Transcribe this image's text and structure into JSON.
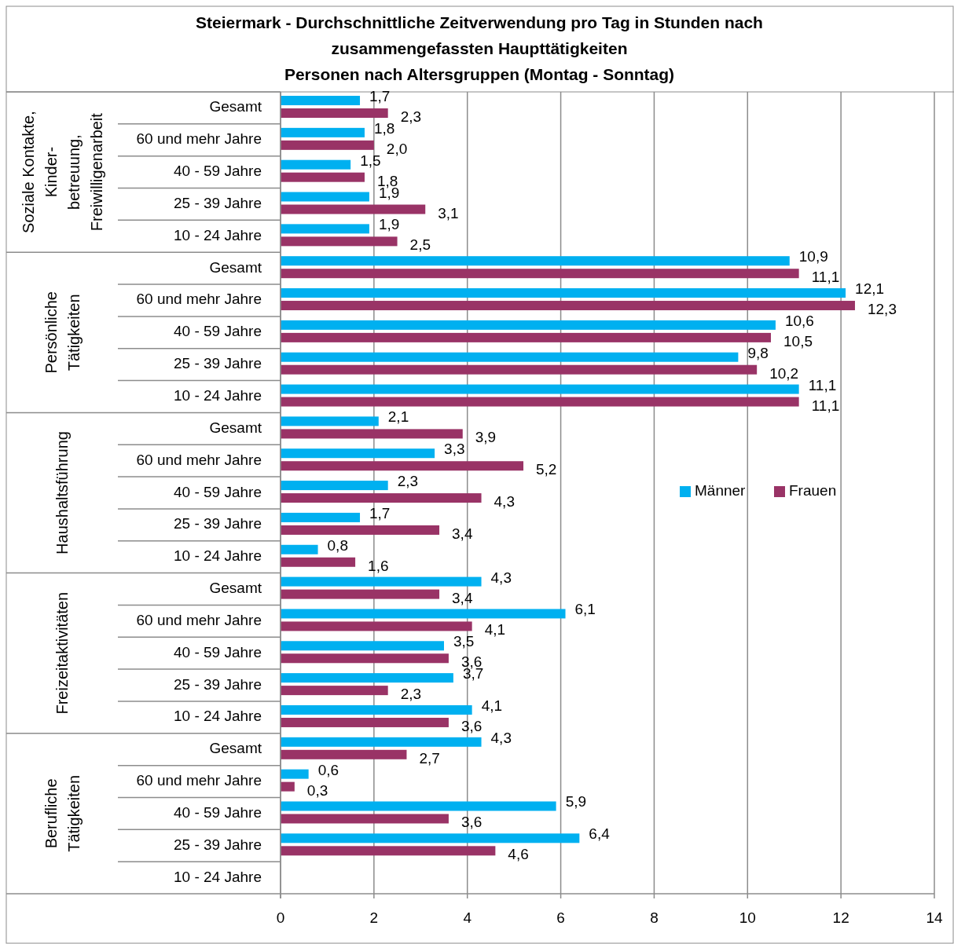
{
  "chart_data": {
    "type": "bar",
    "orientation": "horizontal",
    "title": "Steiermark - Durchschnittliche Zeitverwendung pro Tag in Stunden nach\nzusammengefassten Haupttätigkeiten\nPersonen nach Altersgruppen (Montag - Sonntag)",
    "categories": [
      "Gesamt",
      "60 und mehr Jahre",
      "40 - 59 Jahre",
      "25 - 39 Jahre",
      "10 - 24 Jahre",
      "Gesamt",
      "60 und mehr Jahre",
      "40 - 59 Jahre",
      "25 - 39 Jahre",
      "10 - 24 Jahre",
      "Gesamt",
      "60 und mehr Jahre",
      "40 - 59 Jahre",
      "25 - 39 Jahre",
      "10 - 24 Jahre",
      "Gesamt",
      "60 und mehr Jahre",
      "40 - 59 Jahre",
      "25 - 39 Jahre",
      "10 - 24 Jahre",
      "Gesamt",
      "60 und mehr Jahre",
      "40 - 59 Jahre",
      "25 - 39 Jahre",
      "10 - 24 Jahre"
    ],
    "series": [
      {
        "name": "Männer",
        "color": "#00b0f0",
        "values": [
          1.7,
          1.8,
          1.5,
          1.9,
          1.9,
          10.9,
          12.1,
          10.6,
          9.8,
          11.1,
          2.1,
          3.3,
          2.3,
          1.7,
          0.8,
          4.3,
          6.1,
          3.5,
          3.7,
          4.1,
          4.3,
          0.6,
          5.9,
          6.4,
          null
        ],
        "value_labels": [
          "1,7",
          "1,8",
          "1,5",
          "1,9",
          "1,9",
          "10,9",
          "12,1",
          "10,6",
          "9,8",
          "11,1",
          "2,1",
          "3,3",
          "2,3",
          "1,7",
          "0,8",
          "4,3",
          "6,1",
          "3,5",
          "3,7",
          "4,1",
          "4,3",
          "0,6",
          "5,9",
          "6,4",
          null
        ]
      },
      {
        "name": "Frauen",
        "color": "#993366",
        "values": [
          2.3,
          2.0,
          1.8,
          3.1,
          2.5,
          11.1,
          12.3,
          10.5,
          10.2,
          11.1,
          3.9,
          5.2,
          4.3,
          3.4,
          1.6,
          3.4,
          4.1,
          3.6,
          2.3,
          3.6,
          2.7,
          0.3,
          3.6,
          4.6,
          null
        ],
        "value_labels": [
          "2,3",
          "2,0",
          "1,8",
          "3,1",
          "2,5",
          "11,1",
          "12,3",
          "10,5",
          "10,2",
          "11,1",
          "3,9",
          "5,2",
          "4,3",
          "3,4",
          "1,6",
          "3,4",
          "4,1",
          "3,6",
          "2,3",
          "3,6",
          "2,7",
          "0,3",
          "3,6",
          "4,6",
          null
        ]
      }
    ],
    "annotations": [
      "Soziale Kontakte,\nKinder-\nbetreuung,\nFreiwilligenarbeit",
      "Persönliche\nTätigkeiten",
      "Haushaltsführung",
      "Freizeitaktivitäten",
      "Berufliche\nTätigkeiten"
    ],
    "xlim": [
      0,
      14
    ],
    "xticks": [
      0,
      2,
      4,
      6,
      8,
      10,
      12,
      14
    ],
    "grid": "x",
    "legend": "right"
  }
}
